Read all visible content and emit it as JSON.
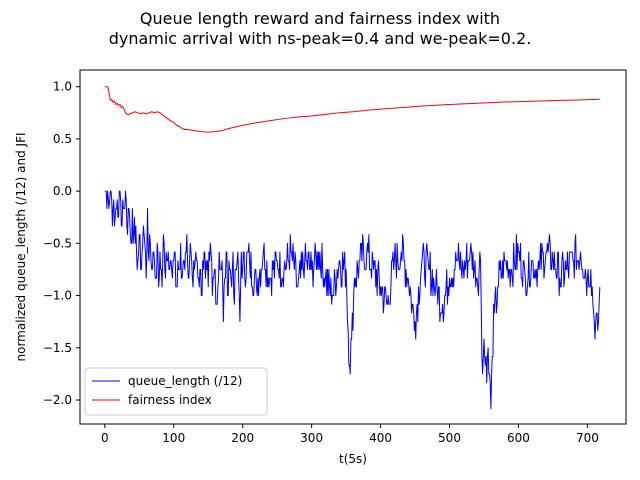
{
  "chart_data": {
    "type": "line",
    "title_lines": [
      "Queue length reward and fairness index with",
      "dynamic arrival with ns-peak=0.4 and we-peak=0.2."
    ],
    "xlabel": "t(5s)",
    "ylabel": "normalized queue_length (/12) and JFI",
    "xlim": [
      -36,
      756
    ],
    "ylim": [
      -2.23,
      1.16
    ],
    "x_ticks": [
      0,
      100,
      200,
      300,
      400,
      500,
      600,
      700
    ],
    "x_tick_labels": [
      "0",
      "100",
      "200",
      "300",
      "400",
      "500",
      "600",
      "700"
    ],
    "y_ticks": [
      -2.0,
      -1.5,
      -1.0,
      -0.5,
      0.0,
      0.5,
      1.0
    ],
    "y_tick_labels": [
      "−2.0",
      "−1.5",
      "−1.0",
      "−0.5",
      "0.0",
      "0.5",
      "1.0"
    ],
    "grid": false,
    "legend_position": "lower-left",
    "series": [
      {
        "name": "queue_length (/12)",
        "color": "#0000ff",
        "x": [
          0,
          4,
          5,
          8,
          10,
          12,
          14,
          16,
          18,
          20,
          22,
          24,
          26,
          28,
          30,
          32,
          34,
          36,
          38,
          40,
          42,
          44,
          46,
          48,
          50,
          52,
          54,
          56,
          58,
          60,
          62,
          64,
          66,
          68,
          70,
          72,
          74,
          76,
          78,
          80,
          82,
          84,
          86,
          88,
          90,
          92,
          94,
          96,
          98,
          100,
          102,
          104,
          106,
          108,
          110,
          112,
          114,
          116,
          118,
          120,
          122,
          124,
          126,
          128,
          130,
          132,
          134,
          136,
          138,
          140,
          142,
          144,
          146,
          148,
          150,
          152,
          154,
          156,
          158,
          160,
          162,
          164,
          166,
          168,
          170,
          172,
          174,
          176,
          178,
          180,
          182,
          184,
          186,
          188,
          190,
          192,
          194,
          196,
          198,
          200,
          210,
          220,
          230,
          240,
          250,
          260,
          270,
          280,
          290,
          300,
          310,
          320,
          330,
          340,
          350,
          355,
          358,
          362,
          370,
          380,
          390,
          400,
          410,
          420,
          430,
          440,
          450,
          460,
          470,
          480,
          490,
          500,
          510,
          520,
          530,
          540,
          545,
          548,
          550,
          552,
          555,
          558,
          560,
          562,
          565,
          570,
          580,
          590,
          600,
          610,
          620,
          630,
          640,
          650,
          660,
          670,
          680,
          690,
          700,
          705,
          710,
          715,
          718
        ],
        "y": [
          0.0,
          0.0,
          -0.08,
          0.0,
          -0.08,
          -0.17,
          -0.33,
          -0.17,
          -0.08,
          -0.25,
          0.0,
          -0.33,
          -0.08,
          -0.17,
          0.0,
          -0.33,
          -0.17,
          -0.25,
          -0.5,
          -0.17,
          -0.42,
          -0.5,
          -0.58,
          -0.67,
          -0.42,
          -0.75,
          -0.58,
          -0.33,
          -0.5,
          -0.83,
          -0.17,
          -0.67,
          -0.5,
          -0.75,
          -0.58,
          -0.67,
          -0.83,
          -0.5,
          -0.92,
          -0.58,
          -0.75,
          -0.67,
          -0.5,
          -0.83,
          -0.67,
          -0.58,
          -0.75,
          -0.67,
          -0.83,
          -0.67,
          -0.58,
          -0.92,
          -0.67,
          -0.75,
          -0.5,
          -0.83,
          -0.67,
          -0.75,
          -0.58,
          -0.67,
          -0.83,
          -0.5,
          -0.67,
          -0.92,
          -0.75,
          -0.58,
          -0.67,
          -0.83,
          -0.75,
          -1.0,
          -0.67,
          -0.58,
          -0.83,
          -0.75,
          -0.92,
          -0.67,
          -0.58,
          -1.0,
          -0.83,
          -0.75,
          -1.08,
          -0.92,
          -0.58,
          -0.75,
          -0.67,
          -1.25,
          -0.83,
          -0.58,
          -1.0,
          -0.67,
          -0.75,
          -0.92,
          -0.58,
          -1.08,
          -0.75,
          -0.67,
          -0.83,
          -1.25,
          -0.58,
          -0.75,
          -0.67,
          -0.92,
          -0.58,
          -0.83,
          -0.67,
          -0.75,
          -0.58,
          -0.92,
          -0.67,
          -0.75,
          -0.58,
          -0.83,
          -1.0,
          -0.67,
          -0.75,
          -1.67,
          -1.42,
          -0.83,
          -0.67,
          -0.58,
          -0.75,
          -0.92,
          -1.08,
          -0.67,
          -0.58,
          -0.83,
          -1.25,
          -0.67,
          -0.75,
          -0.92,
          -1.08,
          -0.83,
          -0.67,
          -0.75,
          -0.58,
          -0.83,
          -0.67,
          -1.75,
          -1.42,
          -1.67,
          -1.58,
          -1.75,
          -2.08,
          -1.58,
          -1.17,
          -0.92,
          -0.67,
          -0.75,
          -0.58,
          -0.83,
          -0.67,
          -0.75,
          -0.58,
          -0.67,
          -0.83,
          -0.75,
          -0.67,
          -0.58,
          -0.83,
          -0.75,
          -1.25,
          -1.33,
          -0.92
        ],
        "noise_amplitude": 0.25
      },
      {
        "name": "fairness index",
        "color": "#ff0000",
        "x": [
          0,
          4,
          5,
          8,
          10,
          12,
          14,
          16,
          18,
          20,
          22,
          24,
          26,
          28,
          30,
          34,
          36,
          40,
          44,
          48,
          52,
          56,
          60,
          64,
          68,
          72,
          76,
          80,
          84,
          88,
          92,
          96,
          100,
          104,
          108,
          112,
          116,
          120,
          130,
          140,
          150,
          160,
          170,
          180,
          190,
          200,
          220,
          240,
          260,
          280,
          300,
          320,
          340,
          360,
          380,
          400,
          420,
          440,
          460,
          480,
          500,
          520,
          540,
          560,
          580,
          600,
          620,
          640,
          660,
          680,
          700,
          718
        ],
        "y": [
          1.0,
          1.0,
          0.98,
          0.87,
          0.88,
          0.85,
          0.86,
          0.83,
          0.84,
          0.82,
          0.83,
          0.8,
          0.81,
          0.78,
          0.75,
          0.73,
          0.74,
          0.75,
          0.76,
          0.75,
          0.74,
          0.75,
          0.74,
          0.75,
          0.76,
          0.75,
          0.76,
          0.75,
          0.73,
          0.71,
          0.69,
          0.67,
          0.66,
          0.63,
          0.62,
          0.6,
          0.59,
          0.59,
          0.58,
          0.57,
          0.565,
          0.57,
          0.58,
          0.6,
          0.615,
          0.63,
          0.655,
          0.675,
          0.695,
          0.71,
          0.72,
          0.735,
          0.75,
          0.76,
          0.775,
          0.785,
          0.795,
          0.805,
          0.815,
          0.822,
          0.83,
          0.836,
          0.842,
          0.848,
          0.853,
          0.857,
          0.861,
          0.865,
          0.869,
          0.872,
          0.876,
          0.88
        ]
      }
    ]
  }
}
